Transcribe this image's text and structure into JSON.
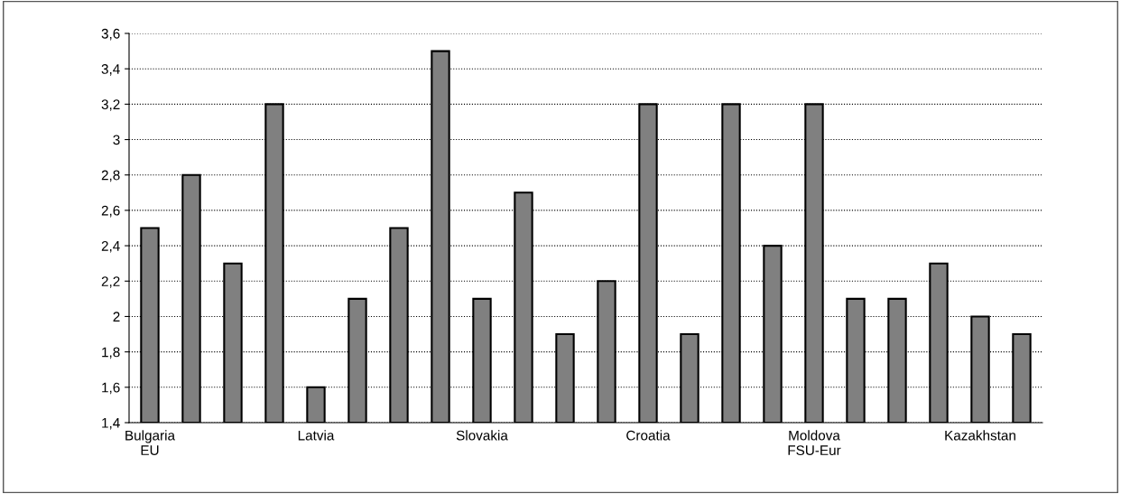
{
  "chart_data": {
    "type": "bar",
    "categories": [
      "Bulgaria\nEU",
      null,
      null,
      null,
      "Latvia",
      null,
      null,
      null,
      "Slovakia",
      null,
      null,
      null,
      "Croatia",
      null,
      null,
      null,
      "Moldova\nFSU-Eur",
      null,
      null,
      null,
      "Kazakhstan",
      null
    ],
    "values": [
      2.5,
      2.8,
      2.3,
      3.2,
      1.6,
      2.1,
      2.5,
      3.5,
      2.1,
      2.7,
      1.9,
      2.2,
      3.2,
      1.9,
      3.2,
      2.4,
      3.2,
      2.1,
      2.1,
      2.3,
      2.0,
      1.9
    ],
    "color": "#808080",
    "ylim": [
      1.4,
      3.6
    ],
    "yticks": [
      {
        "value": 1.4,
        "label": "1,4"
      },
      {
        "value": 1.6,
        "label": "1,6"
      },
      {
        "value": 1.8,
        "label": "1,8"
      },
      {
        "value": 2,
        "label": "2"
      },
      {
        "value": 2.2,
        "label": "2,2"
      },
      {
        "value": 2.4,
        "label": "2,4"
      },
      {
        "value": 2.6,
        "label": "2,6"
      },
      {
        "value": 2.8,
        "label": "2,8"
      },
      {
        "value": 3,
        "label": "3"
      },
      {
        "value": 3.2,
        "label": "3,2"
      },
      {
        "value": 3.4,
        "label": "3,4"
      },
      {
        "value": 3.6,
        "label": "3,6"
      }
    ],
    "grid": "y",
    "line_style": "dotted"
  }
}
